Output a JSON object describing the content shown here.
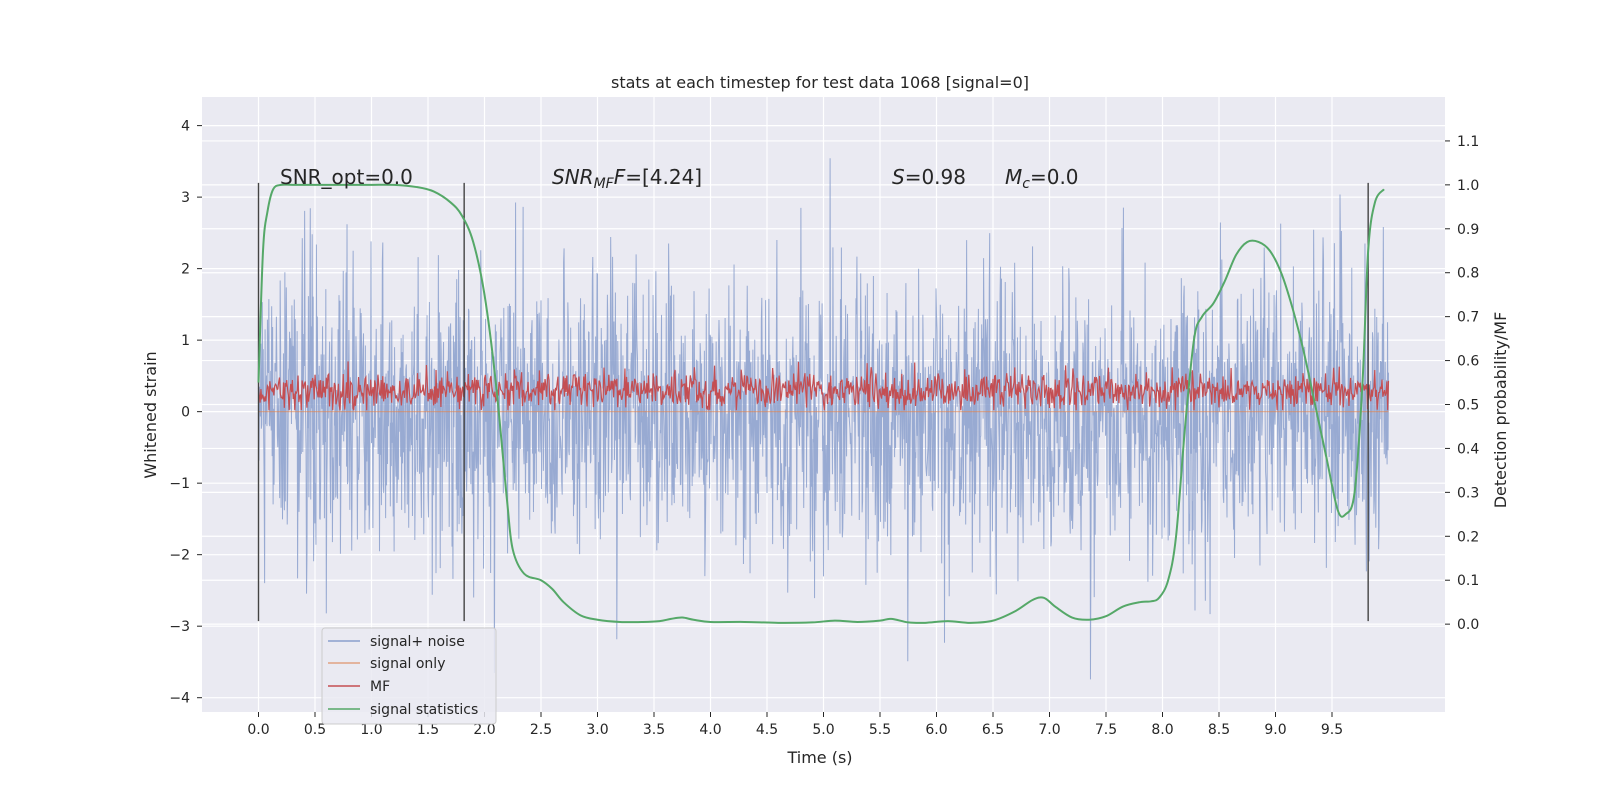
{
  "chart_data": {
    "type": "line",
    "title": "stats at each timestep for test data 1068 [signal=0]",
    "xlabel": "Time (s)",
    "ylabel_left": "Whitened strain",
    "ylabel_right": "Detection probability/MF",
    "xlim": [
      -0.5,
      10.5
    ],
    "ylim_left": [
      -4.2,
      4.4
    ],
    "ylim_right": [
      -0.2,
      1.2
    ],
    "x_ticks": [
      "0.0",
      "0.5",
      "1.0",
      "1.5",
      "2.0",
      "2.5",
      "3.0",
      "3.5",
      "4.0",
      "4.5",
      "5.0",
      "5.5",
      "6.0",
      "6.5",
      "7.0",
      "7.5",
      "8.0",
      "8.5",
      "9.0",
      "9.5"
    ],
    "y_left_ticks": [
      "4",
      "3",
      "2",
      "1",
      "0",
      "−1",
      "−2",
      "−3",
      "−4"
    ],
    "y_right_ticks": [
      "1.1",
      "1.0",
      "0.9",
      "0.8",
      "0.7",
      "0.6",
      "0.5",
      "0.4",
      "0.3",
      "0.2",
      "0.1",
      "0.0"
    ],
    "grid": true,
    "legend_position": "lower-left",
    "colors": {
      "signal_noise": "#8a9fcc",
      "signal_only": "#dd8452",
      "mf": "#c44e52",
      "signal_statistics": "#55a868",
      "vline": "#444444",
      "background": "#eaeaf2"
    },
    "annotations": {
      "snr_opt": "SNR_opt=0.0",
      "snr_mf_main": "SNR",
      "snr_mf_sub": "MF",
      "snr_mf_rest": "=[4.24]",
      "s_main": "S",
      "s_rest": "=0.98",
      "mc_main": "M",
      "mc_sub": "c",
      "mc_rest": "=0.0"
    },
    "vlines_x": [
      0.0,
      1.82,
      9.82
    ],
    "series": [
      {
        "name": "signal+ noise",
        "axis": "left",
        "noise": true,
        "mean": 0.0,
        "std": 1.0,
        "x_range": [
          0.0,
          10.0
        ]
      },
      {
        "name": "signal only",
        "axis": "left",
        "values": [
          0,
          0
        ],
        "x": [
          0.0,
          10.0
        ]
      },
      {
        "name": "MF",
        "axis": "left",
        "noise": true,
        "mean": 0.3,
        "std": 0.13,
        "x_range": [
          0.0,
          10.0
        ]
      },
      {
        "name": "signal statistics",
        "axis": "right",
        "x": [
          0.0,
          0.04,
          0.08,
          0.13,
          0.2,
          0.3,
          0.5,
          0.8,
          1.0,
          1.2,
          1.4,
          1.55,
          1.7,
          1.8,
          1.9,
          2.0,
          2.1,
          2.2,
          2.25,
          2.35,
          2.5,
          2.6,
          2.7,
          2.85,
          3.0,
          3.2,
          3.4,
          3.55,
          3.65,
          3.75,
          3.85,
          4.0,
          4.3,
          4.6,
          4.9,
          5.1,
          5.3,
          5.5,
          5.6,
          5.75,
          5.9,
          6.1,
          6.3,
          6.5,
          6.7,
          6.85,
          6.95,
          7.05,
          7.2,
          7.35,
          7.5,
          7.65,
          7.8,
          7.9,
          7.97,
          8.05,
          8.12,
          8.2,
          8.28,
          8.35,
          8.45,
          8.55,
          8.65,
          8.75,
          8.85,
          8.95,
          9.05,
          9.15,
          9.25,
          9.35,
          9.45,
          9.55,
          9.62,
          9.7,
          9.77,
          9.82,
          9.88,
          9.96
        ],
        "values": [
          0.55,
          0.85,
          0.94,
          0.99,
          1.0,
          1.0,
          1.0,
          1.0,
          1.0,
          1.0,
          0.995,
          0.985,
          0.96,
          0.93,
          0.87,
          0.75,
          0.55,
          0.28,
          0.17,
          0.115,
          0.1,
          0.08,
          0.05,
          0.02,
          0.01,
          0.005,
          0.005,
          0.007,
          0.012,
          0.015,
          0.01,
          0.005,
          0.005,
          0.003,
          0.004,
          0.008,
          0.005,
          0.008,
          0.012,
          0.004,
          0.003,
          0.007,
          0.003,
          0.008,
          0.03,
          0.055,
          0.06,
          0.04,
          0.015,
          0.01,
          0.018,
          0.04,
          0.05,
          0.052,
          0.06,
          0.1,
          0.2,
          0.45,
          0.65,
          0.7,
          0.73,
          0.78,
          0.84,
          0.87,
          0.87,
          0.85,
          0.8,
          0.72,
          0.62,
          0.5,
          0.38,
          0.26,
          0.25,
          0.3,
          0.55,
          0.85,
          0.96,
          0.99
        ]
      }
    ]
  }
}
